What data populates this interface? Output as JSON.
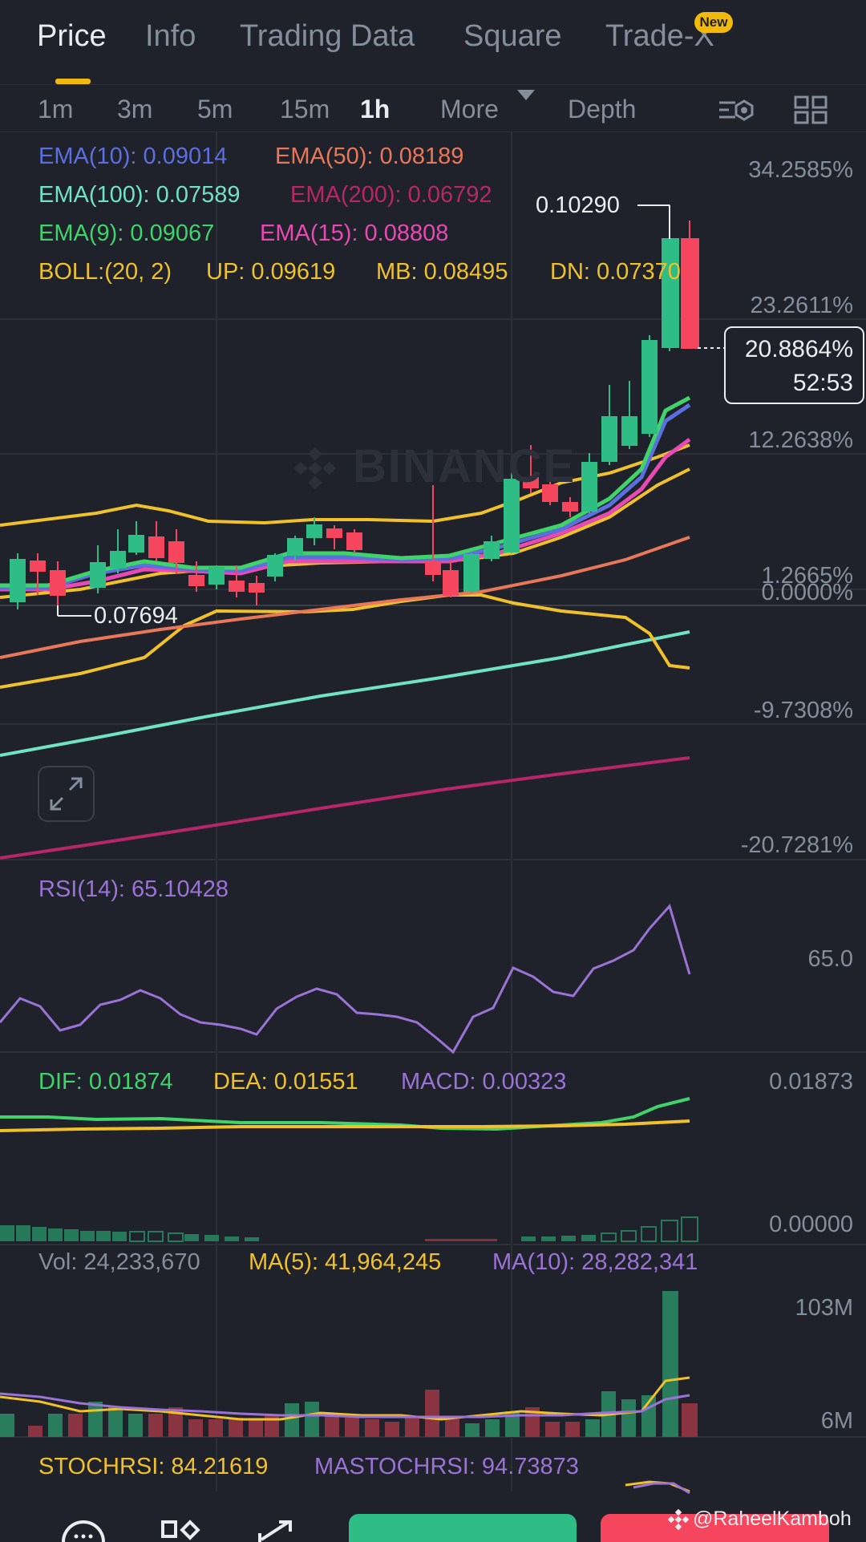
{
  "tabs": [
    {
      "label": "Price",
      "active": true
    },
    {
      "label": "Info"
    },
    {
      "label": "Trading Data"
    },
    {
      "label": "Square"
    },
    {
      "label": "Trade-X",
      "badge": "New"
    }
  ],
  "intervals": [
    {
      "label": "1m"
    },
    {
      "label": "3m"
    },
    {
      "label": "5m"
    },
    {
      "label": "15m"
    },
    {
      "label": "1h",
      "active": true
    }
  ],
  "more_label": "More",
  "depth_label": "Depth",
  "legends": {
    "ema10": "EMA(10): 0.09014",
    "ema50": "EMA(50): 0.08189",
    "ema100": "EMA(100): 0.07589",
    "ema200": "EMA(200): 0.06792",
    "ema9": "EMA(9): 0.09067",
    "ema15": "EMA(15): 0.08808",
    "boll": "BOLL:(20, 2)",
    "boll_up": "UP: 0.09619",
    "boll_mb": "MB: 0.08495",
    "boll_dn": "DN: 0.07370"
  },
  "price_axis": [
    "34.2585%",
    "23.2611%",
    "12.2638%",
    "1.2665%",
    "0.0000%",
    "-9.7308%",
    "-20.7281%"
  ],
  "high_label": "0.10290",
  "low_label": "0.07694",
  "current": {
    "value": "20.8864%",
    "countdown": "52:53"
  },
  "watermark": "BINANCE",
  "rsi": {
    "legend": "RSI(14): 65.10428",
    "axis": "65.0"
  },
  "macd": {
    "dif": "DIF: 0.01874",
    "dea": "DEA: 0.01551",
    "macd": "MACD: 0.00323",
    "axis_top": "0.01873",
    "axis_bottom": "0.00000"
  },
  "volume": {
    "vol": "Vol: 24,233,670",
    "ma5": "MA(5): 41,964,245",
    "ma10": "MA(10): 28,282,341",
    "axis_top": "103M",
    "axis_bottom": "6M"
  },
  "stochrsi": {
    "stoch": "STOCHRSI: 84.21619",
    "mastoch": "MASTOCHRSI: 94.73873"
  },
  "credit": "@RaheelKamboh",
  "colors": {
    "bg": "#1f222a",
    "up": "#2ebd85",
    "down": "#f6465d",
    "accent": "#f0b90b",
    "ema10": "#5b6fe0",
    "ema50": "#e9785a",
    "ema100": "#6fe3c3",
    "ema200": "#b8266a",
    "ema9": "#3fd36a",
    "ema15": "#e84ab4",
    "boll": "#f0c12a",
    "rsi": "#9b73d6",
    "dea": "#f0c12a",
    "dif": "#3fd36a"
  },
  "icons": [
    "chart-setting-icon",
    "grid-layout-icon",
    "expand-icon",
    "more-caret-icon",
    "chat-icon",
    "widgets-icon",
    "share-icon",
    "binance-logo-icon"
  ]
}
